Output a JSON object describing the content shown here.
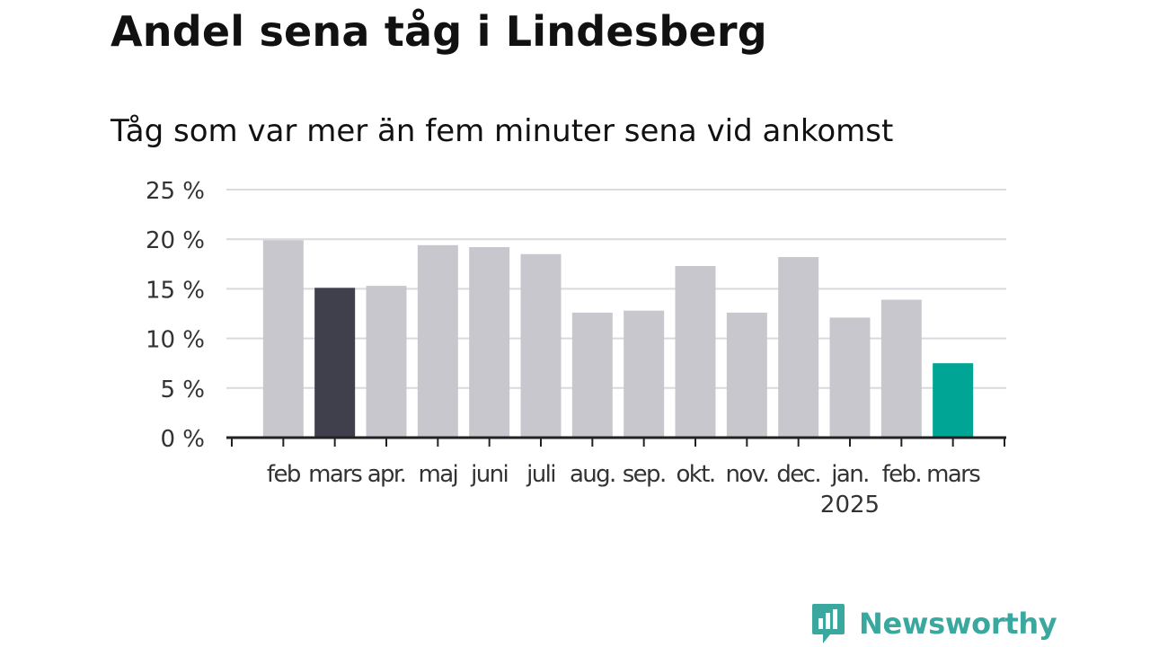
{
  "header": {
    "title": "Andel sena tåg i Lindesberg",
    "subtitle": "Tåg som var mer än fem minuter sena vid ankomst"
  },
  "brand": {
    "name": "Newsworthy",
    "color": "#3aa89f"
  },
  "chart_data": {
    "type": "bar",
    "categories": [
      "feb",
      "mars",
      "apr.",
      "maj",
      "juni",
      "juli",
      "aug.",
      "sep.",
      "okt.",
      "nov.",
      "dec.",
      "jan.",
      "feb.",
      "mars"
    ],
    "year_labels": [
      {
        "index": 11,
        "label": "2025"
      }
    ],
    "values": [
      19.9,
      15.1,
      15.3,
      19.4,
      19.2,
      18.5,
      12.6,
      12.8,
      17.3,
      12.6,
      18.2,
      12.1,
      13.9,
      7.5
    ],
    "colors": [
      "#c8c7cd",
      "#403f4c",
      "#c8c7cd",
      "#c8c7cd",
      "#c8c7cd",
      "#c8c7cd",
      "#c8c7cd",
      "#c8c7cd",
      "#c8c7cd",
      "#c8c7cd",
      "#c8c7cd",
      "#c8c7cd",
      "#c8c7cd",
      "#00a595"
    ],
    "ylim": [
      0,
      25
    ],
    "yticks": [
      0,
      5,
      10,
      15,
      20,
      25
    ],
    "ytick_labels": [
      "0 %",
      "5 %",
      "10 %",
      "15 %",
      "20 %",
      "25 %"
    ],
    "grid": true,
    "xlabel": "",
    "ylabel": ""
  }
}
